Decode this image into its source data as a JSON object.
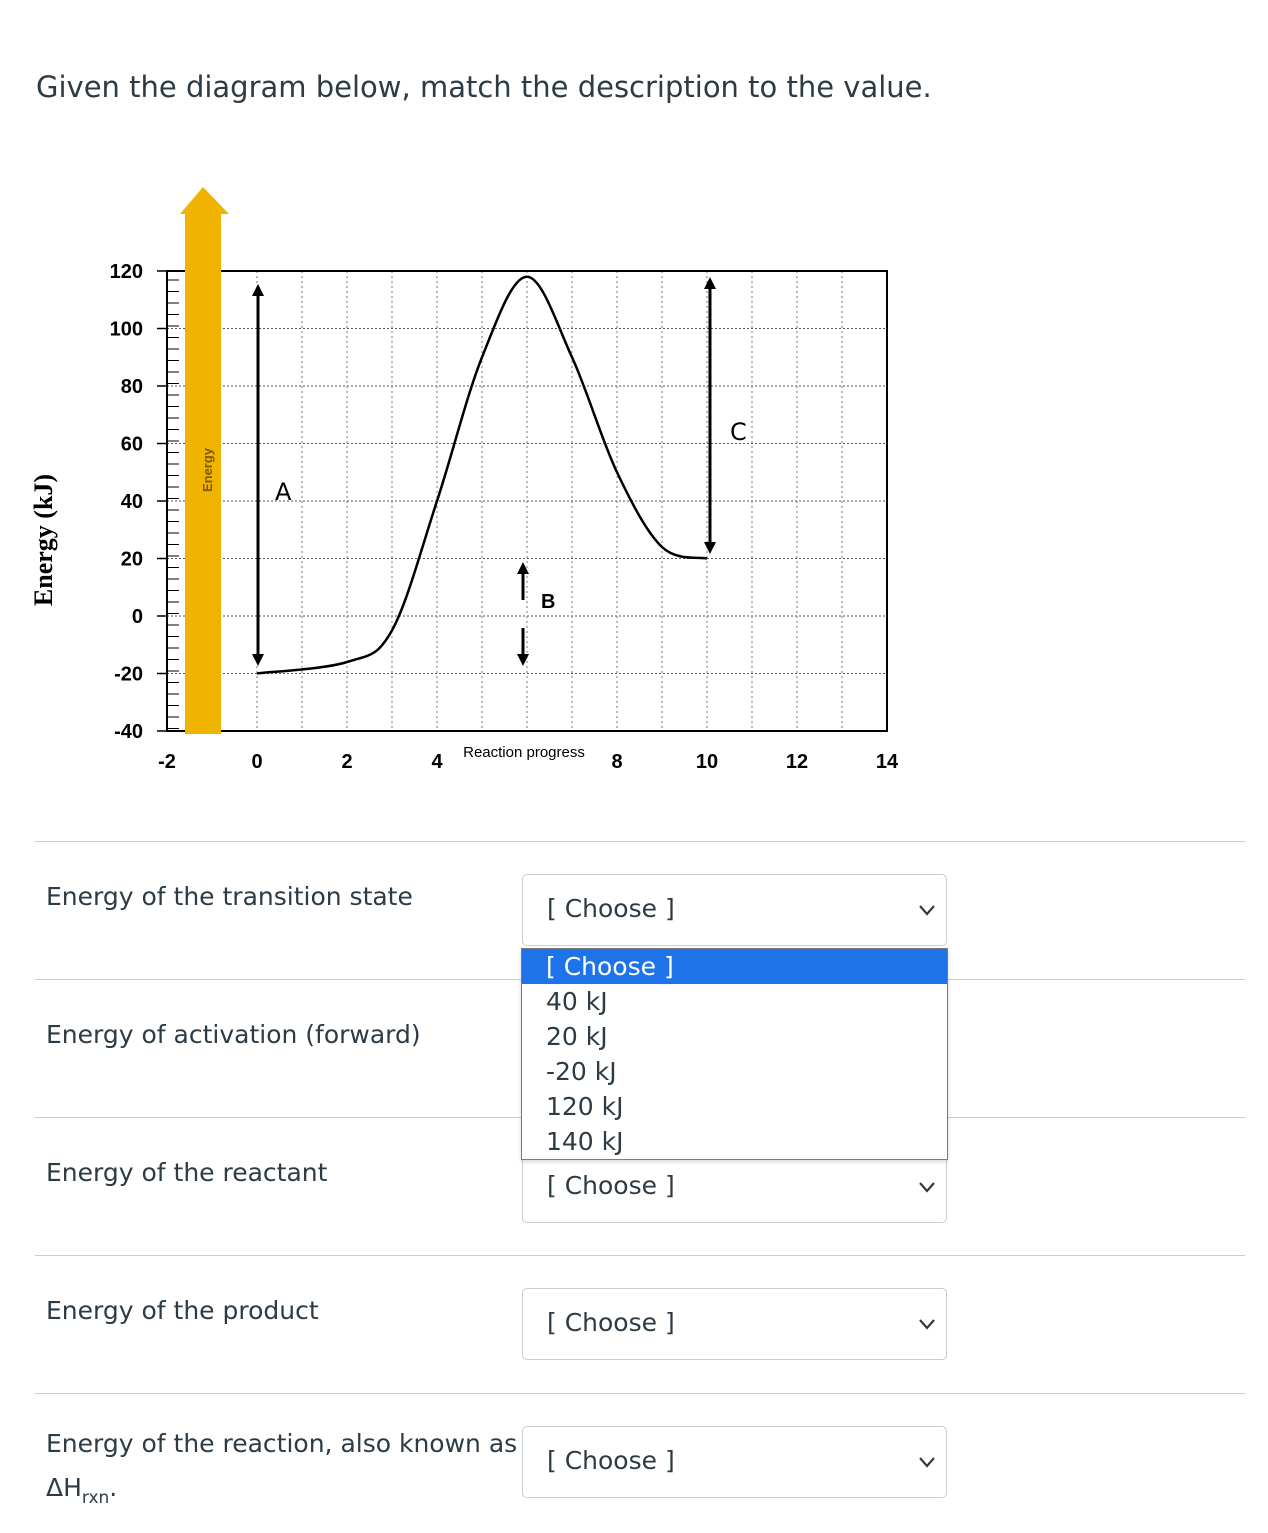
{
  "question": {
    "prompt": "Given the diagram below, match the description to the value."
  },
  "diagram": {
    "y_axis_title": "Energy (kJ)",
    "x_axis_title": "Reaction progress",
    "arrow_label": "Energy",
    "y_ticks": [
      "120",
      "100",
      "80",
      "60",
      "40",
      "20",
      "0",
      "-20",
      "-40"
    ],
    "x_ticks": [
      "-2",
      "0",
      "2",
      "4",
      "8",
      "10",
      "12",
      "14"
    ],
    "label_a": "A",
    "label_b": "B",
    "label_c": "C",
    "colors": {
      "arrow": "#f0b400",
      "curve": "#000000",
      "grid": "#4a4a4a"
    }
  },
  "chart_data": {
    "type": "line",
    "xlabel": "Reaction progress",
    "ylabel": "Energy (kJ)",
    "xlim": [
      -2,
      14
    ],
    "ylim": [
      -40,
      120
    ],
    "series": [
      {
        "x": [
          0,
          2,
          3,
          4,
          5,
          6,
          7,
          8,
          9,
          10
        ],
        "y": [
          -20,
          -16,
          -5,
          40,
          90,
          118,
          90,
          50,
          24,
          20
        ]
      }
    ],
    "annotations": [
      "A",
      "B",
      "C"
    ]
  },
  "rows": [
    {
      "label": "Energy of the transition state",
      "select_value": "[ Choose ]"
    },
    {
      "label": "Energy of activation (forward)",
      "select_value": "[ Choose ]"
    },
    {
      "label": "Energy of the reactant",
      "select_value": "[ Choose ]"
    },
    {
      "label": "Energy of the product",
      "select_value": "[ Choose ]"
    },
    {
      "label": "Energy of the reaction, also known as",
      "label_line2": "ΔH",
      "label_sub": "rxn",
      "label_end": ".",
      "select_value": "[ Choose ]"
    }
  ],
  "dropdown": {
    "options": [
      "[ Choose ]",
      "40 kJ",
      "20 kJ",
      "-20 kJ",
      "120 kJ",
      "140 kJ"
    ],
    "selected_index": 0
  }
}
